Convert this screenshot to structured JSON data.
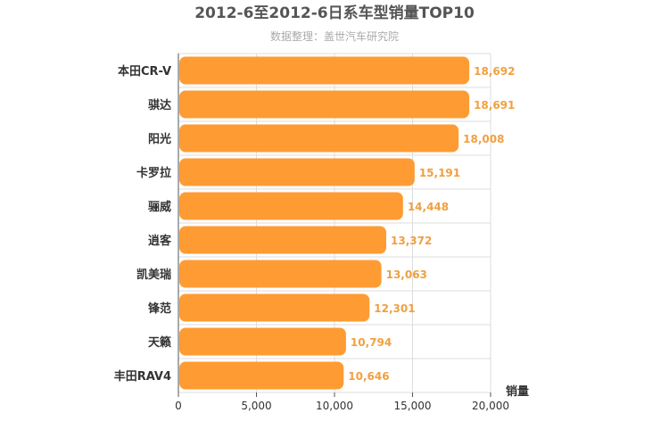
{
  "chart_data": {
    "type": "bar",
    "orientation": "horizontal",
    "title": "2012-6至2012-6日系车型销量TOP10",
    "subtitle": "数据整理：盖世汽车研究院",
    "xlabel": "销量",
    "categories": [
      "本田CR-V",
      "骐达",
      "阳光",
      "卡罗拉",
      "骊威",
      "逍客",
      "凯美瑞",
      "锋范",
      "天籁",
      "丰田RAV4"
    ],
    "values": [
      18692,
      18691,
      18008,
      15191,
      14448,
      13372,
      13063,
      12301,
      10794,
      10646
    ],
    "value_labels": [
      "18,692",
      "18,691",
      "18,008",
      "15,191",
      "14,448",
      "13,372",
      "13,063",
      "12,301",
      "10,794",
      "10,646"
    ],
    "xlim": [
      0,
      20000
    ],
    "ticks": [
      0,
      5000,
      10000,
      15000,
      20000
    ],
    "tick_labels": [
      "0",
      "5,000",
      "10,000",
      "15,000",
      "20,000"
    ],
    "grid": true,
    "legend": "none",
    "colors": {
      "bar": "#ff9b33",
      "value_label": "#f0a040",
      "grid": "#dddddd",
      "axis": "#555555"
    }
  }
}
